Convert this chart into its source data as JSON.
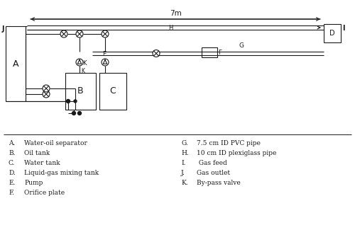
{
  "bg_color": "#ffffff",
  "line_color": "#1a1a1a",
  "legend_items_left": [
    [
      "A.",
      "Water-oil separator"
    ],
    [
      "B.",
      "Oil tank"
    ],
    [
      "C.",
      "Water tank"
    ],
    [
      "D.",
      "Liquid-gas mixing tank"
    ],
    [
      "E.",
      "Pump"
    ],
    [
      "F.",
      "Orifice plate"
    ]
  ],
  "legend_items_right": [
    [
      "G.",
      "7.5 cm ID PVC pipe"
    ],
    [
      "H.",
      "10 cm ID plexiglass pipe"
    ],
    [
      "I.",
      " Gas feed"
    ],
    [
      "J.",
      "Gas outlet"
    ],
    [
      "K.",
      "By-pass valve"
    ]
  ]
}
